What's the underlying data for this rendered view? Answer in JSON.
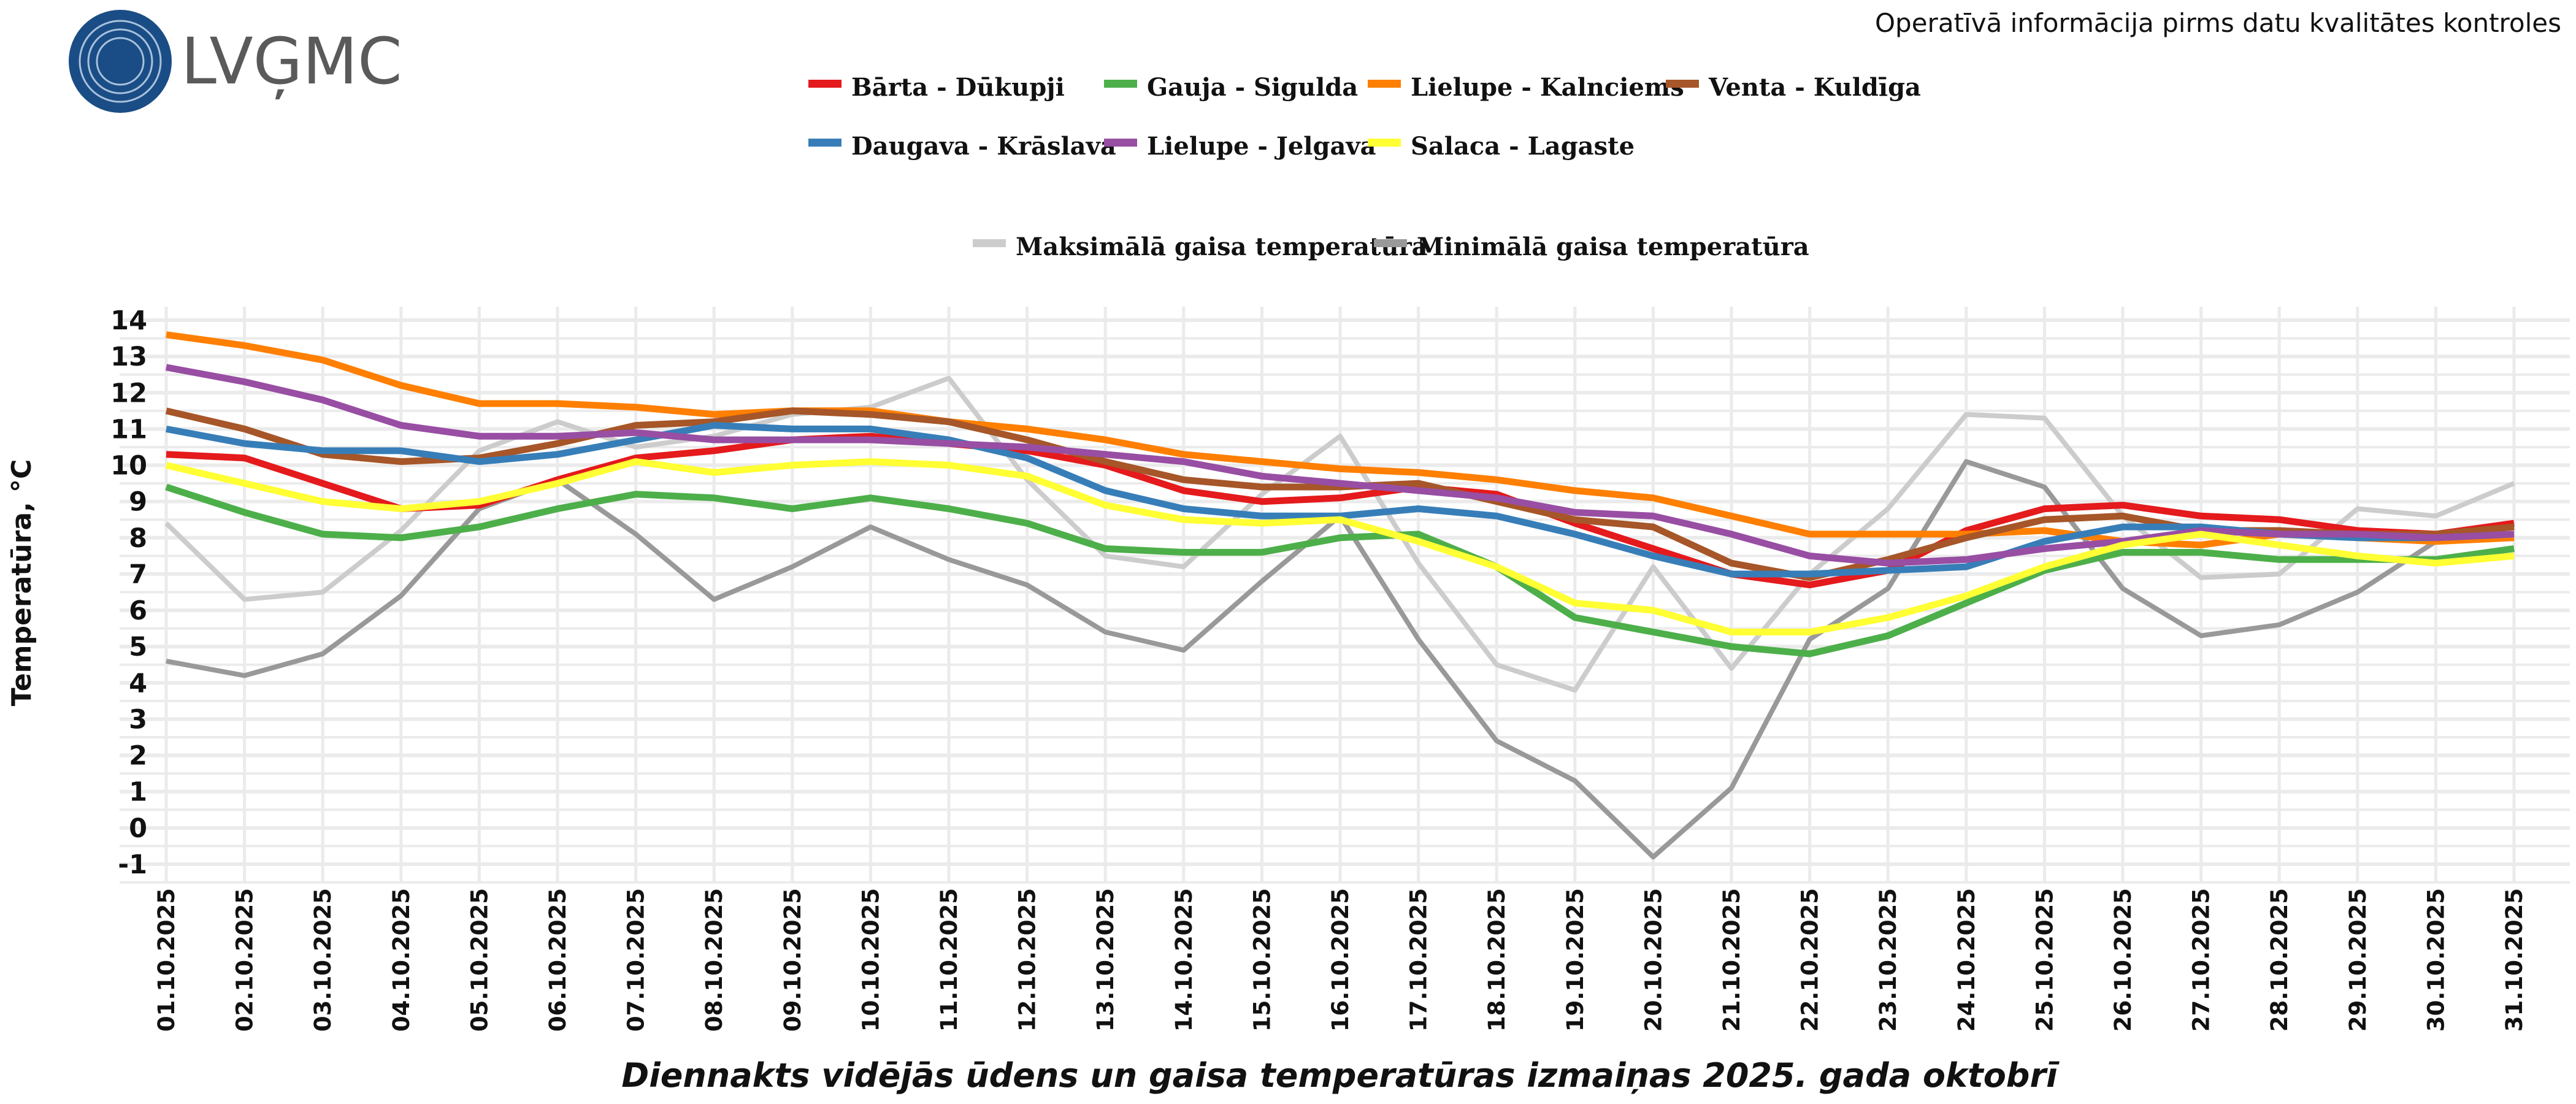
{
  "header": {
    "logo_text": "LVĢMC",
    "notice": "Operatīvā informācija pirms datu kvalitātes kontroles"
  },
  "chart_data": {
    "type": "line",
    "title": "Diennakts vidējās ūdens un gaisa temperatūras izmaiņas 2025. gada oktobrī",
    "xlabel": "",
    "ylabel": "Temperatūra, °C",
    "ylim": [
      -1,
      14
    ],
    "yticks": [
      "-1",
      "0",
      "1",
      "2",
      "3",
      "4",
      "5",
      "6",
      "7",
      "8",
      "9",
      "10",
      "11",
      "12",
      "13",
      "14"
    ],
    "grid": true,
    "legend_position": "top",
    "categories": [
      "01.10.2025",
      "02.10.2025",
      "03.10.2025",
      "04.10.2025",
      "05.10.2025",
      "06.10.2025",
      "07.10.2025",
      "08.10.2025",
      "09.10.2025",
      "10.10.2025",
      "11.10.2025",
      "12.10.2025",
      "13.10.2025",
      "14.10.2025",
      "15.10.2025",
      "16.10.2025",
      "17.10.2025",
      "18.10.2025",
      "19.10.2025",
      "20.10.2025",
      "21.10.2025",
      "22.10.2025",
      "23.10.2025",
      "24.10.2025",
      "25.10.2025",
      "26.10.2025",
      "27.10.2025",
      "28.10.2025",
      "29.10.2025",
      "30.10.2025",
      "31.10.2025"
    ],
    "series": [
      {
        "name": "Maksimālā gaisa temperatūra",
        "color": "#cccccc",
        "group": "air",
        "values": [
          8.4,
          6.3,
          6.5,
          8.2,
          10.4,
          11.2,
          10.5,
          10.8,
          11.4,
          11.6,
          12.4,
          9.6,
          7.5,
          7.2,
          9.2,
          10.8,
          7.3,
          4.5,
          3.8,
          7.2,
          4.4,
          7.0,
          8.8,
          11.4,
          11.3,
          8.6,
          6.9,
          7.0,
          8.8,
          8.6,
          9.5
        ]
      },
      {
        "name": "Minimālā gaisa temperatūra",
        "color": "#999999",
        "group": "air",
        "values": [
          4.6,
          4.2,
          4.8,
          6.4,
          8.8,
          9.6,
          8.1,
          6.3,
          7.2,
          8.3,
          7.4,
          6.7,
          5.4,
          4.9,
          6.8,
          8.6,
          5.2,
          2.4,
          1.3,
          -0.8,
          1.1,
          5.2,
          6.6,
          10.1,
          9.4,
          6.6,
          5.3,
          5.6,
          6.5,
          7.9,
          8.0
        ]
      },
      {
        "name": "Bārta - Dūkupji",
        "color": "#e41a1c",
        "group": "water",
        "values": [
          10.3,
          10.2,
          9.5,
          8.8,
          8.9,
          9.6,
          10.2,
          10.4,
          10.7,
          10.8,
          10.6,
          10.4,
          10.0,
          9.3,
          9.0,
          9.1,
          9.4,
          9.2,
          8.4,
          7.7,
          7.0,
          6.7,
          7.1,
          8.2,
          8.8,
          8.9,
          8.6,
          8.5,
          8.2,
          8.1,
          8.4
        ]
      },
      {
        "name": "Gauja - Sigulda",
        "color": "#4daf4a",
        "group": "water",
        "values": [
          9.4,
          8.7,
          8.1,
          8.0,
          8.3,
          8.8,
          9.2,
          9.1,
          8.8,
          9.1,
          8.8,
          8.4,
          7.7,
          7.6,
          7.6,
          8.0,
          8.1,
          7.2,
          5.8,
          5.4,
          5.0,
          4.8,
          5.3,
          6.2,
          7.1,
          7.6,
          7.6,
          7.4,
          7.4,
          7.4,
          7.7
        ]
      },
      {
        "name": "Lielupe - Kalnciems",
        "color": "#ff7f00",
        "group": "water",
        "values": [
          13.6,
          13.3,
          12.9,
          12.2,
          11.7,
          11.7,
          11.6,
          11.4,
          11.5,
          11.5,
          11.2,
          11.0,
          10.7,
          10.3,
          10.1,
          9.9,
          9.8,
          9.6,
          9.3,
          9.1,
          8.6,
          8.1,
          8.1,
          8.1,
          8.2,
          7.9,
          7.8,
          8.1,
          8.0,
          7.9,
          8.0
        ]
      },
      {
        "name": "Venta - Kuldīga",
        "color": "#a65628",
        "group": "water",
        "values": [
          11.5,
          11.0,
          10.3,
          10.1,
          10.2,
          10.6,
          11.1,
          11.2,
          11.5,
          11.4,
          11.2,
          10.7,
          10.1,
          9.6,
          9.4,
          9.4,
          9.5,
          9.0,
          8.5,
          8.3,
          7.3,
          6.9,
          7.4,
          8.0,
          8.5,
          8.6,
          8.2,
          8.2,
          8.1,
          8.1,
          8.3
        ]
      },
      {
        "name": "Daugava - Krāslava",
        "color": "#377eb8",
        "group": "water",
        "values": [
          11.0,
          10.6,
          10.4,
          10.4,
          10.1,
          10.3,
          10.7,
          11.1,
          11.0,
          11.0,
          10.7,
          10.2,
          9.3,
          8.8,
          8.6,
          8.6,
          8.8,
          8.6,
          8.1,
          7.5,
          7.0,
          7.0,
          7.1,
          7.2,
          7.9,
          8.3,
          8.3,
          8.1,
          8.0,
          8.0,
          8.1
        ]
      },
      {
        "name": "Lielupe - Jelgava",
        "color": "#984ea3",
        "group": "water",
        "values": [
          12.7,
          12.3,
          11.8,
          11.1,
          10.8,
          10.8,
          10.9,
          10.7,
          10.7,
          10.7,
          10.6,
          10.5,
          10.3,
          10.1,
          9.7,
          9.5,
          9.3,
          9.1,
          8.7,
          8.6,
          8.1,
          7.5,
          7.3,
          7.4,
          7.7,
          7.9,
          8.2,
          8.1,
          8.1,
          8.0,
          8.1
        ]
      },
      {
        "name": "Salaca - Lagaste",
        "color": "#ffff33",
        "group": "water",
        "values": [
          10.0,
          9.5,
          9.0,
          8.8,
          9.0,
          9.5,
          10.1,
          9.8,
          10.0,
          10.1,
          10.0,
          9.7,
          8.9,
          8.5,
          8.4,
          8.5,
          7.9,
          7.2,
          6.2,
          6.0,
          5.4,
          5.4,
          5.8,
          6.4,
          7.2,
          7.8,
          8.1,
          7.8,
          7.5,
          7.3,
          7.5
        ]
      }
    ],
    "legend_rows": [
      [
        "Bārta - Dūkupji",
        "Gauja - Sigulda",
        "Lielupe - Kalnciems",
        "Venta - Kuldīga"
      ],
      [
        "Daugava - Krāslava",
        "Lielupe - Jelgava",
        "Salaca - Lagaste"
      ],
      [
        "Maksimālā gaisa temperatūra",
        "Minimālā gaisa temperatūra"
      ]
    ]
  }
}
